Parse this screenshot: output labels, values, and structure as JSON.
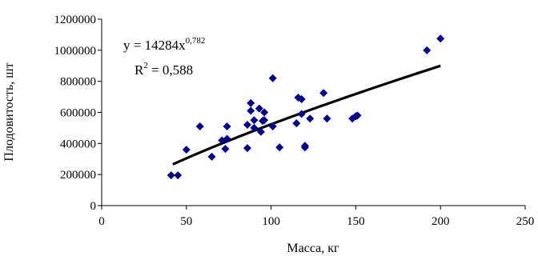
{
  "chart_data": {
    "type": "scatter",
    "title": "",
    "xlabel": "Масса, кг",
    "ylabel": "Плодовитость, шт",
    "xlim": [
      0,
      250
    ],
    "ylim": [
      0,
      1200000
    ],
    "x_ticks": [
      0,
      50,
      100,
      150,
      200,
      250
    ],
    "y_ticks": [
      0,
      200000,
      400000,
      600000,
      800000,
      1000000,
      1200000
    ],
    "x_tick_labels": [
      "0",
      "50",
      "100",
      "150",
      "200",
      "250"
    ],
    "y_tick_labels": [
      "0",
      "200000",
      "400000",
      "600000",
      "800000",
      "1000000",
      "1200000"
    ],
    "grid": false,
    "legend": "none",
    "marker": "diamond",
    "marker_color": "#00008b",
    "trend_color": "#000000",
    "trendline": {
      "type": "power",
      "coefficient": 14284,
      "exponent": 0.782,
      "x_range": [
        42,
        200
      ],
      "equation_prefix": "y = 14284x",
      "equation_exponent": "0,782",
      "r2_prefix": "R",
      "r2_exponent": "2",
      "r2_suffix": " = 0,588"
    },
    "series": [
      {
        "x": [
          41,
          45,
          50,
          58,
          65,
          71,
          73,
          74,
          74,
          86,
          86,
          88,
          88,
          90,
          90,
          93,
          94,
          95,
          96,
          96,
          101,
          101,
          105,
          115,
          116,
          118,
          118,
          120,
          120,
          123,
          131,
          133,
          148,
          150,
          151,
          192,
          200
        ],
        "y": [
          195000,
          195000,
          360000,
          510000,
          315000,
          420000,
          365000,
          510000,
          430000,
          370000,
          520000,
          610000,
          660000,
          500000,
          550000,
          625000,
          475000,
          545000,
          550000,
          600000,
          820000,
          510000,
          375000,
          530000,
          695000,
          685000,
          590000,
          375000,
          385000,
          560000,
          725000,
          560000,
          560000,
          575000,
          580000,
          1000000,
          1075000
        ]
      }
    ]
  }
}
